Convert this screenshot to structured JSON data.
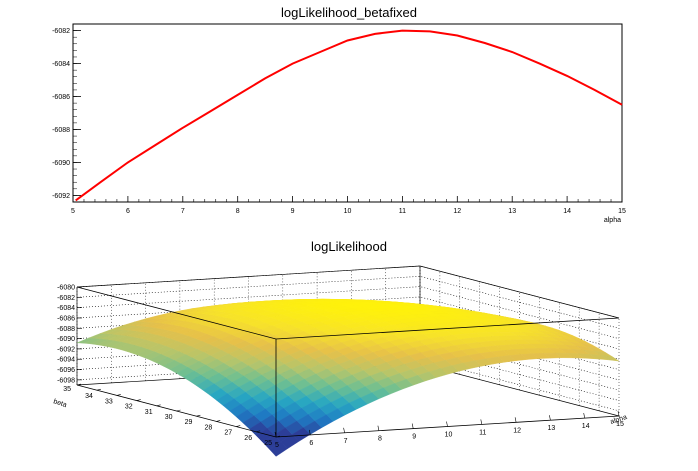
{
  "chart_data": [
    {
      "type": "line",
      "title": "logLikelihood_betafixed",
      "xlabel": "alpha",
      "ylabel": "",
      "xlim": [
        5,
        15
      ],
      "ylim": [
        -6092.4,
        -6081.6
      ],
      "x_ticks": [
        5,
        6,
        7,
        8,
        9,
        10,
        11,
        12,
        13,
        14,
        15
      ],
      "y_ticks": [
        -6082,
        -6084,
        -6086,
        -6088,
        -6090,
        -6092
      ],
      "grid": false,
      "series": [
        {
          "color": "#ff0000",
          "x": [
            5.05,
            5.5,
            6,
            6.5,
            7,
            7.5,
            8,
            8.5,
            9,
            9.5,
            10,
            10.5,
            11,
            11.5,
            12,
            12.5,
            13,
            13.5,
            14,
            14.5,
            15
          ],
          "y": [
            -6092.3,
            -6091.2,
            -6090.0,
            -6088.95,
            -6087.9,
            -6086.9,
            -6085.9,
            -6084.9,
            -6084.0,
            -6083.3,
            -6082.6,
            -6082.2,
            -6082.0,
            -6082.05,
            -6082.3,
            -6082.75,
            -6083.3,
            -6084.0,
            -6084.75,
            -6085.6,
            -6086.5
          ]
        }
      ]
    },
    {
      "type": "surface",
      "title": "logLikelihood",
      "xlabel": "alpha",
      "ylabel": "beta",
      "zlabel": "",
      "x_ticks": [
        5,
        6,
        7,
        8,
        9,
        10,
        11,
        12,
        13,
        14,
        15
      ],
      "y_ticks": [
        25,
        26,
        27,
        28,
        29,
        30,
        31,
        32,
        33,
        34,
        35
      ],
      "z_ticks": [
        -6080,
        -6082,
        -6084,
        -6086,
        -6088,
        -6090,
        -6092,
        -6094,
        -6096,
        -6098
      ],
      "xlim": [
        5,
        15
      ],
      "ylim": [
        25,
        35
      ],
      "zlim": [
        -6099,
        -6080
      ],
      "z_min_shown": -6099,
      "z_max_shown": -6081.5,
      "grid": true,
      "colormap": [
        "#2c3e98",
        "#1f7ac3",
        "#28a7c2",
        "#6cbf93",
        "#b7c56a",
        "#e6c04a",
        "#f7e22a",
        "#fff20a"
      ]
    }
  ]
}
